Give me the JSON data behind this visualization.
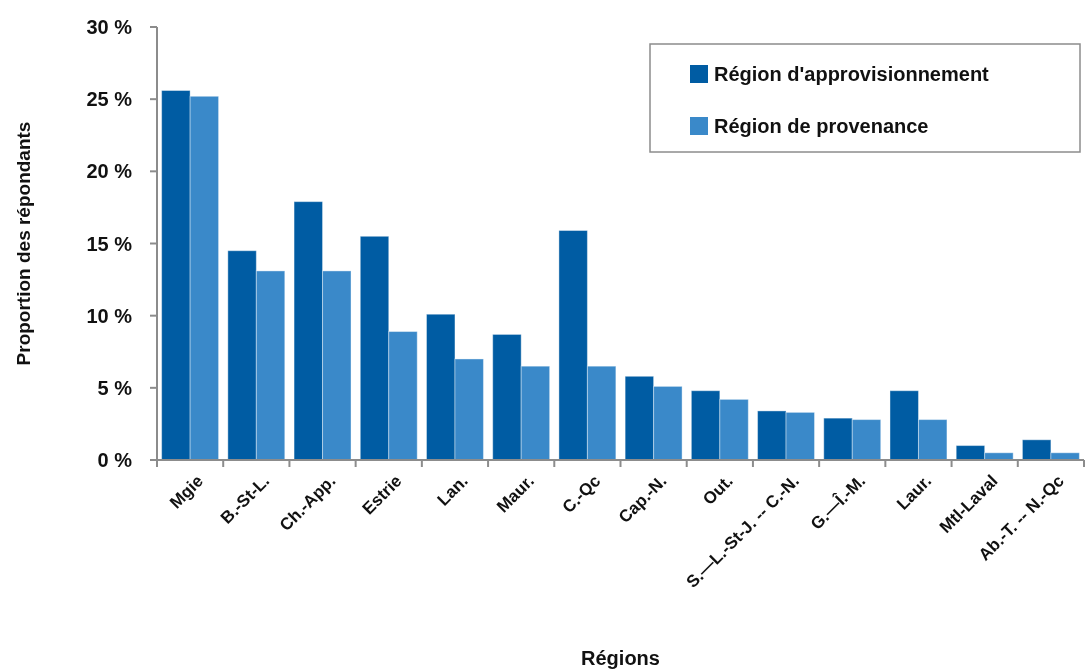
{
  "chart_data": {
    "type": "bar",
    "xlabel": "Régions",
    "ylabel": "Proportion des répondants",
    "categories": [
      "Mgie",
      "B.-St-L.",
      "Ch.-App.",
      "Estrie",
      "Lan.",
      "Maur.",
      "C.-Qc",
      "Cap.-N.",
      "Out.",
      "S.—L.-St-J. -- C.-N.",
      "G.—Î.-M.",
      "Laur.",
      "Mtl-Laval",
      "Ab.-T. -- N.-Qc"
    ],
    "series": [
      {
        "name": "Région d'approvisionnement",
        "color": "#005ca3",
        "values": [
          25.6,
          14.5,
          17.9,
          15.5,
          10.1,
          8.7,
          15.9,
          5.8,
          4.8,
          3.4,
          2.9,
          4.8,
          1.0,
          1.4
        ]
      },
      {
        "name": "Région de provenance",
        "color": "#3a89c9",
        "values": [
          25.2,
          13.1,
          13.1,
          8.9,
          7.0,
          6.5,
          6.5,
          5.1,
          4.2,
          3.3,
          2.8,
          2.8,
          0.5,
          0.5
        ]
      }
    ],
    "ylim": [
      0,
      30
    ],
    "yticks": [
      {
        "value": 0,
        "label": "0 %"
      },
      {
        "value": 5,
        "label": "5 %"
      },
      {
        "value": 10,
        "label": "10 %"
      },
      {
        "value": 15,
        "label": "15 %"
      },
      {
        "value": 20,
        "label": "20 %"
      },
      {
        "value": 25,
        "label": "25 %"
      },
      {
        "value": 30,
        "label": "30 %"
      }
    ],
    "legend": "top right",
    "grid": false
  }
}
